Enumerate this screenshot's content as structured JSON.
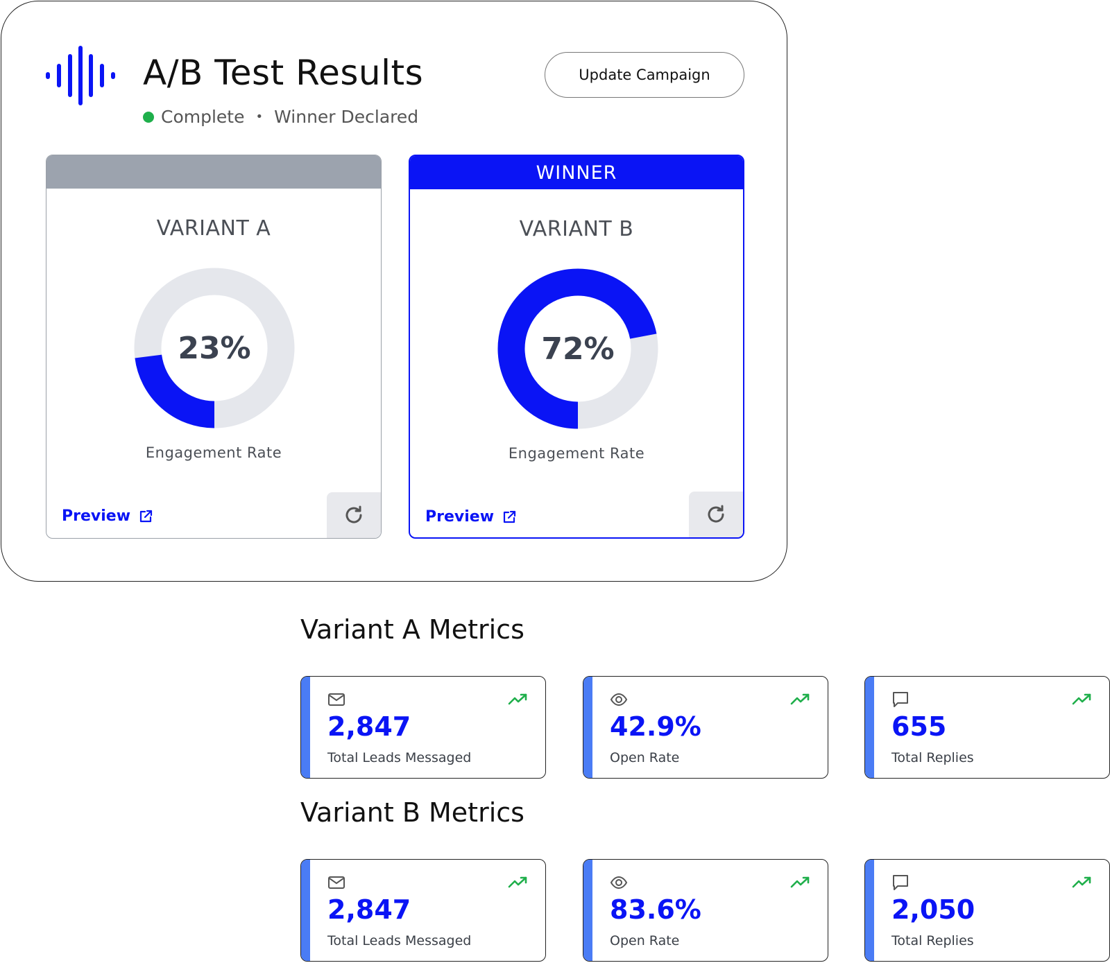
{
  "header": {
    "title": "A/B Test Results",
    "status": "Complete",
    "status_detail": "Winner Declared",
    "status_color": "#1faf4b",
    "update_button": "Update Campaign"
  },
  "variants": [
    {
      "banner": "",
      "name": "VARIANT A",
      "engagement_value": 23,
      "engagement_display": "23%",
      "engagement_label": "Engagement Rate",
      "preview_label": "Preview",
      "winner": false
    },
    {
      "banner": "WINNER",
      "name": "VARIANT B",
      "engagement_value": 72,
      "engagement_display": "72%",
      "engagement_label": "Engagement Rate",
      "preview_label": "Preview",
      "winner": true
    }
  ],
  "metrics": {
    "variant_a": {
      "title": "Variant A Metrics",
      "cards": [
        {
          "icon": "mail-icon",
          "value": "2,847",
          "label": "Total Leads Messaged"
        },
        {
          "icon": "eye-icon",
          "value": "42.9%",
          "label": "Open Rate"
        },
        {
          "icon": "chat-icon",
          "value": "655",
          "label": "Total Replies"
        }
      ]
    },
    "variant_b": {
      "title": "Variant B Metrics",
      "cards": [
        {
          "icon": "mail-icon",
          "value": "2,847",
          "label": "Total Leads Messaged"
        },
        {
          "icon": "eye-icon",
          "value": "83.6%",
          "label": "Open Rate"
        },
        {
          "icon": "chat-icon",
          "value": "2,050",
          "label": "Total Replies"
        }
      ]
    }
  },
  "colors": {
    "accent": "#0a14f5",
    "accent_bar": "#4a7cf5",
    "donut_track": "#e5e7ec",
    "trend_up": "#1faf4b"
  }
}
